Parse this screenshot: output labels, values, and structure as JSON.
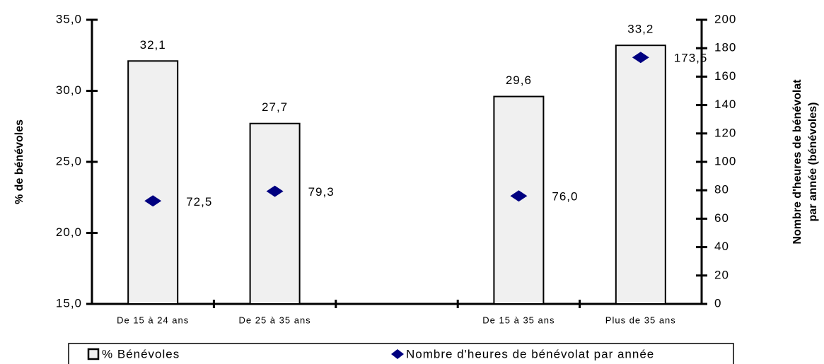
{
  "chart_data": {
    "type": "bar",
    "categories": [
      "De 15 à 24 ans",
      "De 25 à 35 ans",
      null,
      "De 15 à 35 ans",
      "Plus de 35 ans"
    ],
    "series": [
      {
        "name": "% Bénévoles",
        "type": "bar",
        "color": "#f0f0f0",
        "values": [
          32.1,
          27.7,
          null,
          29.6,
          33.2
        ],
        "value_labels": [
          "32,1",
          "27,7",
          null,
          "29,6",
          "33,2"
        ]
      },
      {
        "name": "Nombre d'heures de bénévolat par année",
        "type": "marker",
        "axis": "y2",
        "color": "#000080",
        "values": [
          72.5,
          79.3,
          null,
          76.0,
          173.5
        ],
        "value_labels": [
          "72,5",
          "79,3",
          null,
          "76,0",
          "173,5"
        ]
      }
    ],
    "y_label": "% de bénévoles",
    "y2_label": [
      "Nombre d'heures de bénévolat",
      "par année (bénévoles)"
    ],
    "ylim": [
      15,
      35
    ],
    "yticks": [
      {
        "value": 15,
        "label": "15,0"
      },
      {
        "value": 20,
        "label": "20,0"
      },
      {
        "value": 25,
        "label": "25,0"
      },
      {
        "value": 30,
        "label": "30,0"
      },
      {
        "value": 35,
        "label": "35,0"
      }
    ],
    "y2lim": [
      0,
      200
    ],
    "y2ticks": [
      0,
      20,
      40,
      60,
      80,
      100,
      120,
      140,
      160,
      180,
      200
    ],
    "legend": "bottom"
  }
}
